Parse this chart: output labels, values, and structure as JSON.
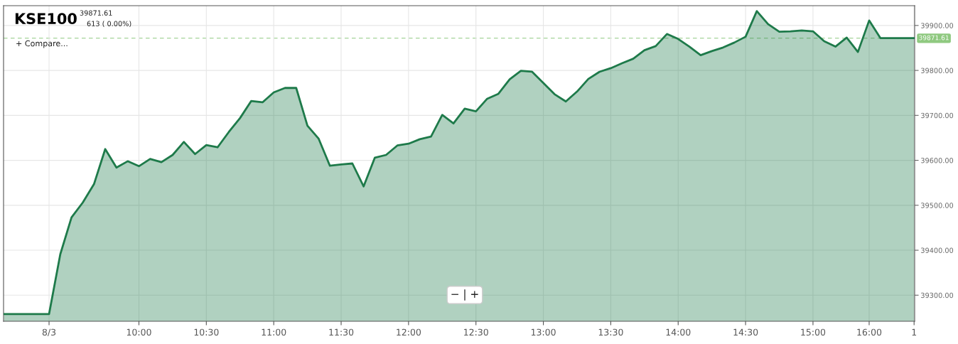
{
  "chart_data": {
    "type": "area",
    "title": "KSE100",
    "annotations": [
      "39871.61",
      "613 ( 0.00%)",
      "+ Compare...",
      "− | +"
    ],
    "categories": [
      null,
      null,
      null,
      null,
      "8/3",
      null,
      null,
      null,
      null,
      null,
      null,
      null,
      "10:00",
      null,
      null,
      null,
      null,
      null,
      "10:30",
      null,
      null,
      null,
      null,
      null,
      "11:00",
      null,
      null,
      null,
      null,
      null,
      "11:30",
      null,
      null,
      null,
      null,
      null,
      "12:00",
      null,
      null,
      null,
      null,
      null,
      "12:30",
      null,
      null,
      null,
      null,
      null,
      "13:00",
      null,
      null,
      null,
      null,
      null,
      "13:30",
      null,
      null,
      null,
      null,
      null,
      "14:00",
      null,
      null,
      null,
      null,
      null,
      "14:30",
      null,
      null,
      null,
      null,
      null,
      "15:00",
      null,
      null,
      null,
      null,
      "16:00",
      null,
      null,
      null,
      "1"
    ],
    "series": [
      {
        "color": "#1e7a4a",
        "values": [
          39258,
          39258,
          39258,
          39258,
          39258,
          39391,
          39473,
          39506,
          39547,
          39625,
          39584,
          39598,
          39587,
          39603,
          39596,
          39612,
          39641,
          39614,
          39634,
          39629,
          39663,
          39694,
          39732,
          39729,
          39751,
          39761,
          39761,
          39677,
          39648,
          39588,
          39591,
          39593,
          39542,
          39606,
          39612,
          39633,
          39637,
          39647,
          39653,
          39701,
          39682,
          39715,
          39709,
          39737,
          39748,
          39780,
          39799,
          39797,
          39772,
          39747,
          39731,
          39753,
          39781,
          39797,
          39805,
          39816,
          39826,
          39845,
          39854,
          39881,
          39870,
          39853,
          39834,
          39843,
          39851,
          39862,
          39875,
          39932,
          39903,
          39886,
          39887,
          39889,
          39887,
          39865,
          39853,
          39873,
          39841,
          39911,
          39872,
          39872,
          39872,
          39872
        ]
      }
    ],
    "ylim": [
      39242,
      39944
    ],
    "yticks": [
      {
        "value": 39300,
        "label": "39300.00"
      },
      {
        "value": 39400,
        "label": "39400.00"
      },
      {
        "value": 39500,
        "label": "39500.00"
      },
      {
        "value": 39600,
        "label": "39600.00"
      },
      {
        "value": 39700,
        "label": "39700.00"
      },
      {
        "value": 39800,
        "label": "39800.00"
      },
      {
        "value": 39900,
        "label": "39900.00"
      }
    ],
    "ref_lines": [
      {
        "axis": "y",
        "value": 39871.61,
        "label": "39871.61",
        "color": "#8fc980",
        "line_style": "dashed"
      }
    ],
    "grid": true,
    "legend": false
  }
}
